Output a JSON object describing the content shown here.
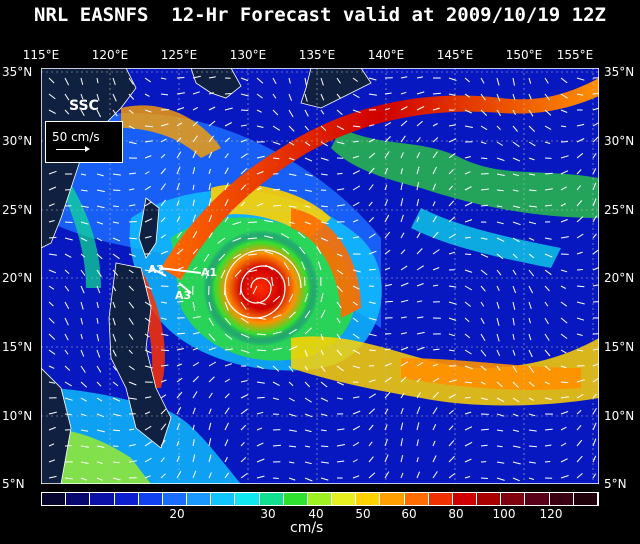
{
  "title": "NRL EASNFS  12-Hr Forecast valid at 2009/10/19 12Z",
  "lon_labels": [
    "115°E",
    "120°E",
    "125°E",
    "130°E",
    "135°E",
    "140°E",
    "145°E",
    "150°E",
    "155°E"
  ],
  "lat_labels": [
    "35°N",
    "30°N",
    "25°N",
    "20°N",
    "15°N",
    "10°N",
    "5°N"
  ],
  "field_label": "SSC",
  "scale_label": "50 cm/s",
  "section_labels": [
    "A1",
    "A2",
    "A3"
  ],
  "colorbar": {
    "unit": "cm/s",
    "tick_labels": [
      "20",
      "30",
      "40",
      "50",
      "60",
      "80",
      "100",
      "120"
    ],
    "colors": [
      "#050530",
      "#070770",
      "#0a10a8",
      "#0b1ed0",
      "#1040f0",
      "#1a6cff",
      "#1b98ff",
      "#10c4ff",
      "#10e8f0",
      "#10e090",
      "#30e030",
      "#9ff020",
      "#e6f020",
      "#ffd200",
      "#ffa000",
      "#ff6c00",
      "#f03000",
      "#d00000",
      "#a80000",
      "#800010",
      "#580018",
      "#380010",
      "#200008"
    ]
  }
}
